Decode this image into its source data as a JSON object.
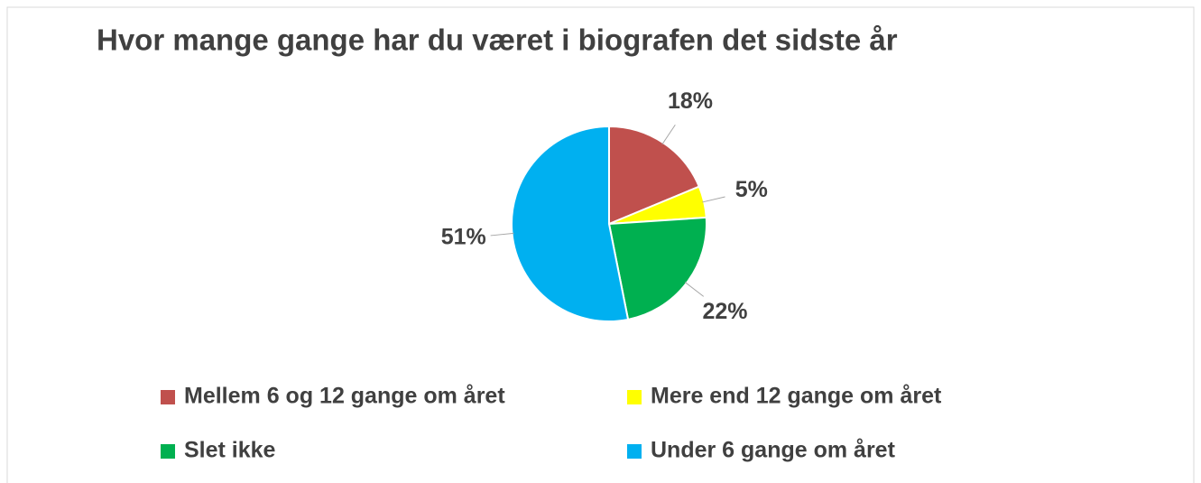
{
  "chart_data": {
    "type": "pie",
    "title": "Hvor mange gange har du været i biografen det sidste år",
    "categories": [
      "Mellem 6 og 12 gange om året",
      "Mere end 12 gange om året",
      "Slet ikke",
      "Under 6 gange om året"
    ],
    "values": [
      18,
      5,
      22,
      51
    ],
    "value_labels": [
      "18%",
      "5%",
      "22%",
      "51%"
    ],
    "colors": [
      "#c0504d",
      "#ffff00",
      "#00b050",
      "#00b0f0"
    ],
    "legend": "bottom"
  }
}
